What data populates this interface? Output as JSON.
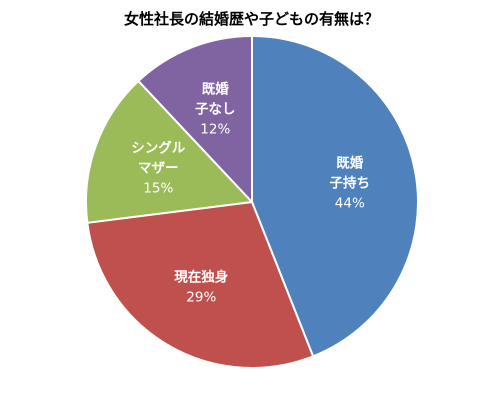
{
  "chart_data": {
    "type": "pie",
    "title": "女性社長の結婚歴や子どもの有無は？",
    "slices": [
      {
        "label": [
          "既婚",
          "子持ち"
        ],
        "value": 44,
        "value_label": "44%",
        "color": "#4f81bd"
      },
      {
        "label": [
          "現在独身"
        ],
        "value": 29,
        "value_label": "29%",
        "color": "#c0504d"
      },
      {
        "label": [
          "シングル",
          "マザー"
        ],
        "value": 15,
        "value_label": "15%",
        "color": "#9bbb59"
      },
      {
        "label": [
          "既婚",
          "子なし"
        ],
        "value": 12,
        "value_label": "12%",
        "color": "#8064a2"
      }
    ],
    "legend": "none",
    "start": "12 o'clock",
    "direction": "clockwise",
    "edge_color": "#ffffff"
  }
}
